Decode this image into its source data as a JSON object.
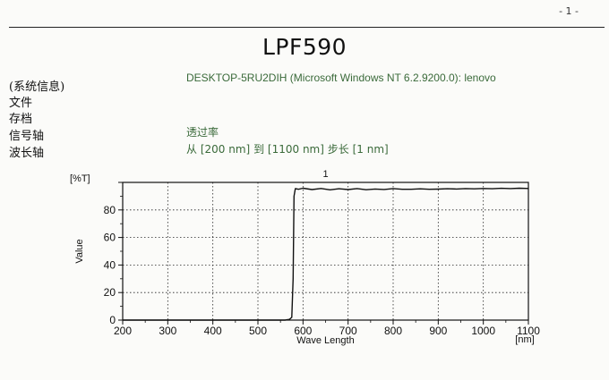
{
  "page": {
    "page_number": "- 1 -",
    "title": "LPF590",
    "machine_info": "DESKTOP-5RU2DIH (Microsoft Windows NT 6.2.9200.0): lenovo",
    "sidebar": [
      "(系统信息)",
      "文件",
      "存档",
      "信号轴",
      "波长轴"
    ],
    "signal_label": "透过率",
    "range": {
      "prefix": "从",
      "start": "[200 nm]",
      "to": "到",
      "end": "[1100 nm]",
      "step_label": "步长",
      "step": "[1 nm]"
    }
  },
  "chart_data": {
    "type": "line",
    "title": "1",
    "xlabel": "Wave Length",
    "x_unit": "[nm]",
    "ylabel": "Value",
    "y_unit": "[%T]",
    "xlim": [
      200,
      1100
    ],
    "ylim": [
      0,
      100
    ],
    "x_ticks": [
      200,
      300,
      400,
      500,
      600,
      700,
      800,
      900,
      1000,
      1100
    ],
    "y_ticks": [
      0,
      20,
      40,
      60,
      80
    ],
    "grid": true,
    "series": [
      {
        "name": "",
        "color": "#111111",
        "x": [
          200,
          300,
          400,
          500,
          560,
          570,
          575,
          578,
          580,
          583,
          590,
          600,
          620,
          640,
          660,
          680,
          700,
          720,
          740,
          760,
          780,
          800,
          820,
          840,
          860,
          880,
          900,
          920,
          940,
          960,
          980,
          1000,
          1020,
          1040,
          1060,
          1080,
          1100
        ],
        "y": [
          0,
          0,
          0,
          0,
          0,
          0.5,
          2,
          30,
          90,
          95.5,
          95,
          95.8,
          94.8,
          95.6,
          94.6,
          95.4,
          94.8,
          95.5,
          94.7,
          95.2,
          94.9,
          95.5,
          95.0,
          95.0,
          95.3,
          95.0,
          95.1,
          95.4,
          95.2,
          95.5,
          95.3,
          95.6,
          95.4,
          95.7,
          95.5,
          95.8,
          95.6
        ]
      }
    ]
  }
}
